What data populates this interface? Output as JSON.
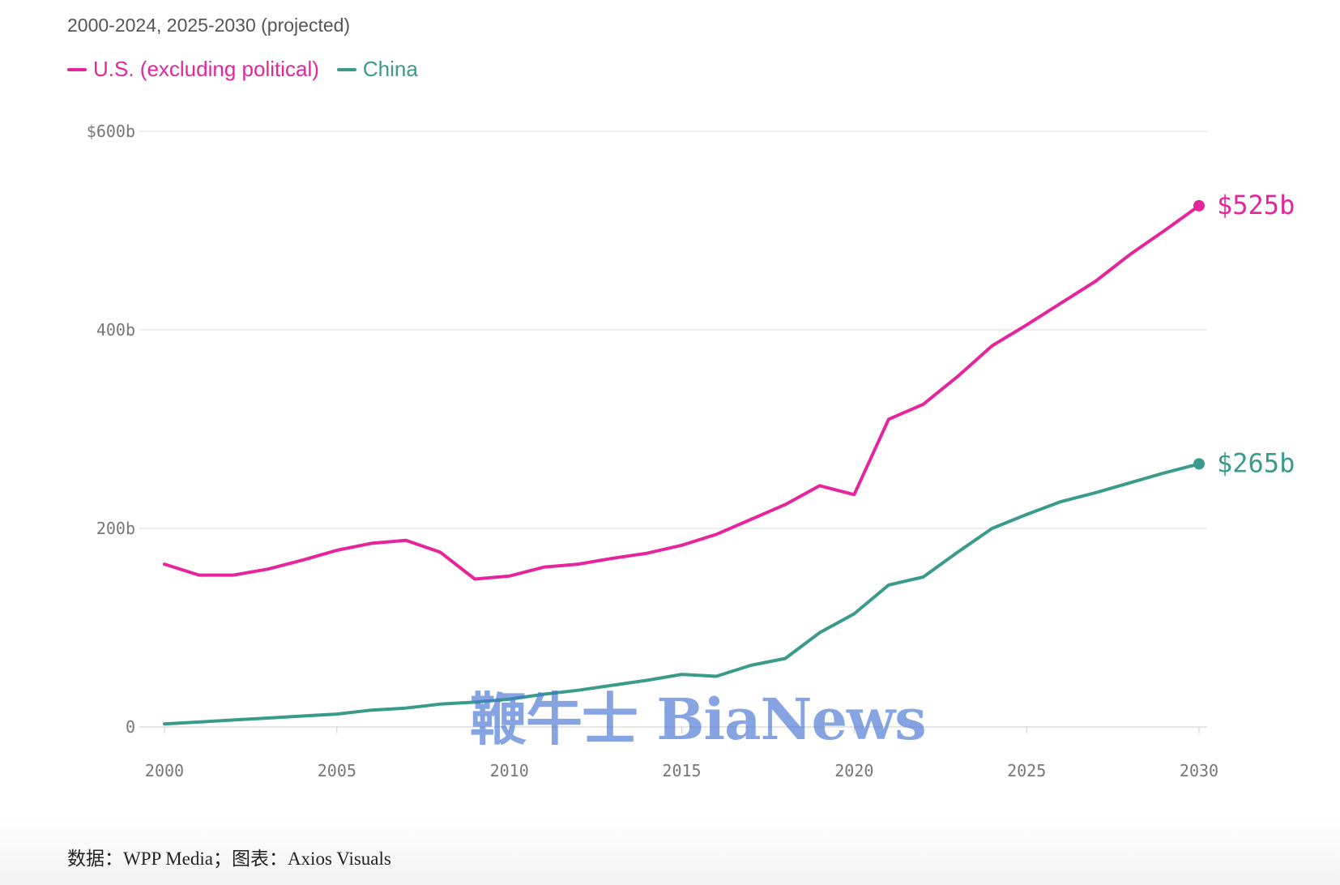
{
  "subtitle": "2000-2024, 2025-2030 (projected)",
  "legend": [
    {
      "label": "U.S. (excluding political)",
      "color": "#e6249b"
    },
    {
      "label": "China",
      "color": "#3a9a8b"
    }
  ],
  "footer": "数据：WPP Media；图表：Axios Visuals",
  "watermark": "鞭牛士 BiaNews",
  "chart_data": {
    "type": "line",
    "title": "",
    "subtitle": "2000-2024, 2025-2030 (projected)",
    "xlabel": "",
    "ylabel": "",
    "x": [
      2000,
      2001,
      2002,
      2003,
      2004,
      2005,
      2006,
      2007,
      2008,
      2009,
      2010,
      2011,
      2012,
      2013,
      2014,
      2015,
      2016,
      2017,
      2018,
      2019,
      2020,
      2021,
      2022,
      2023,
      2024,
      2025,
      2026,
      2027,
      2028,
      2029,
      2030
    ],
    "series": [
      {
        "name": "U.S. (excluding political)",
        "color": "#e6249b",
        "values": [
          164,
          153,
          153,
          159,
          168,
          178,
          185,
          188,
          176,
          149,
          152,
          161,
          164,
          170,
          175,
          183,
          194,
          209,
          224,
          243,
          234,
          310,
          325,
          353,
          384,
          405,
          427,
          449,
          476,
          500,
          525
        ],
        "end_label": "$525b"
      },
      {
        "name": "China",
        "color": "#3a9a8b",
        "values": [
          3,
          5,
          7,
          9,
          11,
          13,
          17,
          19,
          23,
          25,
          28,
          33,
          37,
          42,
          47,
          53,
          51,
          62,
          69,
          95,
          114,
          143,
          151,
          176,
          200,
          214,
          227,
          236,
          246,
          256,
          265
        ],
        "end_label": "$265b"
      }
    ],
    "yticks": [
      {
        "value": 0,
        "label": "0"
      },
      {
        "value": 200,
        "label": "200b"
      },
      {
        "value": 400,
        "label": "400b"
      },
      {
        "value": 600,
        "label": "$600b"
      }
    ],
    "xticks": [
      2000,
      2005,
      2010,
      2015,
      2020,
      2025,
      2030
    ],
    "xlim": [
      2000,
      2030
    ],
    "ylim": [
      0,
      600
    ],
    "grid": true,
    "legend_position": "top-left"
  }
}
